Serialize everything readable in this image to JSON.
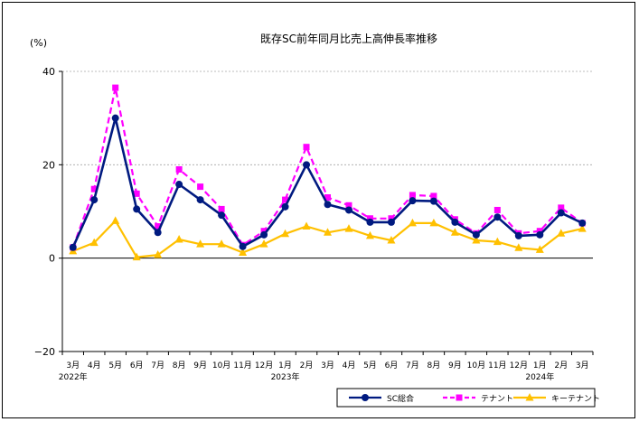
{
  "chart_data": {
    "type": "line",
    "title": "既存SC前年同月比売上高伸長率推移",
    "ylabel": "(%)",
    "ylim": [
      -20,
      40
    ],
    "yticks": [
      "40",
      "20",
      "0",
      "−20"
    ],
    "grid": true,
    "categories": [
      "3月",
      "4月",
      "5月",
      "6月",
      "7月",
      "8月",
      "9月",
      "10月",
      "11月",
      "12月",
      "1月",
      "2月",
      "3月",
      "4月",
      "5月",
      "6月",
      "7月",
      "8月",
      "9月",
      "10月",
      "11月",
      "12月",
      "1月",
      "2月",
      "3月"
    ],
    "year_labels": [
      {
        "index": 0,
        "label": "2022年"
      },
      {
        "index": 10,
        "label": "2023年"
      },
      {
        "index": 22,
        "label": "2024年"
      }
    ],
    "legend_position": "bottom-right",
    "series": [
      {
        "name": "SC総合",
        "color": "#001a80",
        "marker": "circle",
        "dash": "",
        "values": [
          2.3,
          12.5,
          30.0,
          10.5,
          5.5,
          15.8,
          12.5,
          9.2,
          2.5,
          5.0,
          11.0,
          20.0,
          11.5,
          10.3,
          7.7,
          7.7,
          12.3,
          12.2,
          7.7,
          5.0,
          8.8,
          4.8,
          5.0,
          9.7,
          7.5
        ]
      },
      {
        "name": "テナント",
        "color": "#ff00ff",
        "marker": "square",
        "dash": "7,4",
        "values": [
          2.3,
          14.8,
          36.5,
          13.8,
          6.8,
          19.0,
          15.3,
          10.5,
          2.8,
          5.8,
          12.5,
          23.8,
          13.0,
          11.3,
          8.5,
          8.5,
          13.5,
          13.3,
          8.3,
          5.3,
          10.3,
          5.3,
          5.8,
          10.8,
          7.5
        ]
      },
      {
        "name": "キーテナント",
        "color": "#ffc000",
        "marker": "triangle",
        "dash": "",
        "values": [
          1.5,
          3.3,
          8.0,
          0.2,
          0.7,
          4.0,
          3.0,
          3.0,
          1.2,
          3.0,
          5.2,
          6.8,
          5.5,
          6.3,
          4.8,
          3.8,
          7.5,
          7.5,
          5.5,
          3.8,
          3.5,
          2.2,
          1.8,
          5.3,
          6.3
        ]
      }
    ]
  }
}
